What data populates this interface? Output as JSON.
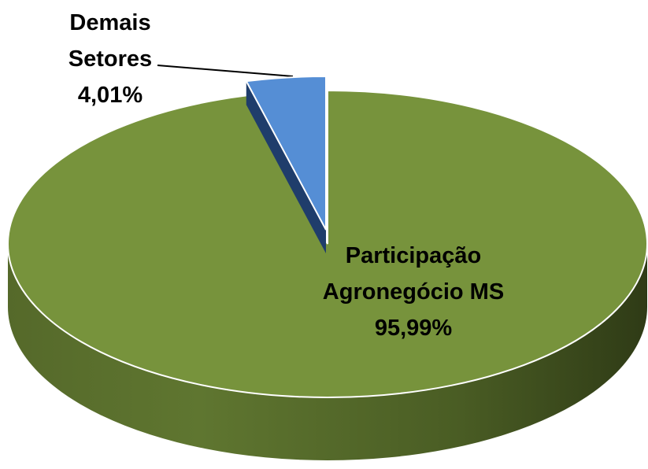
{
  "chart_data": {
    "type": "pie",
    "categories": [
      "Participação Agronegócio MS",
      "Demais Setores"
    ],
    "values": [
      95.99,
      4.01
    ],
    "value_labels": [
      "95,99%",
      "4,01%"
    ],
    "colors": [
      "#77933c",
      "#558ed5"
    ]
  }
}
